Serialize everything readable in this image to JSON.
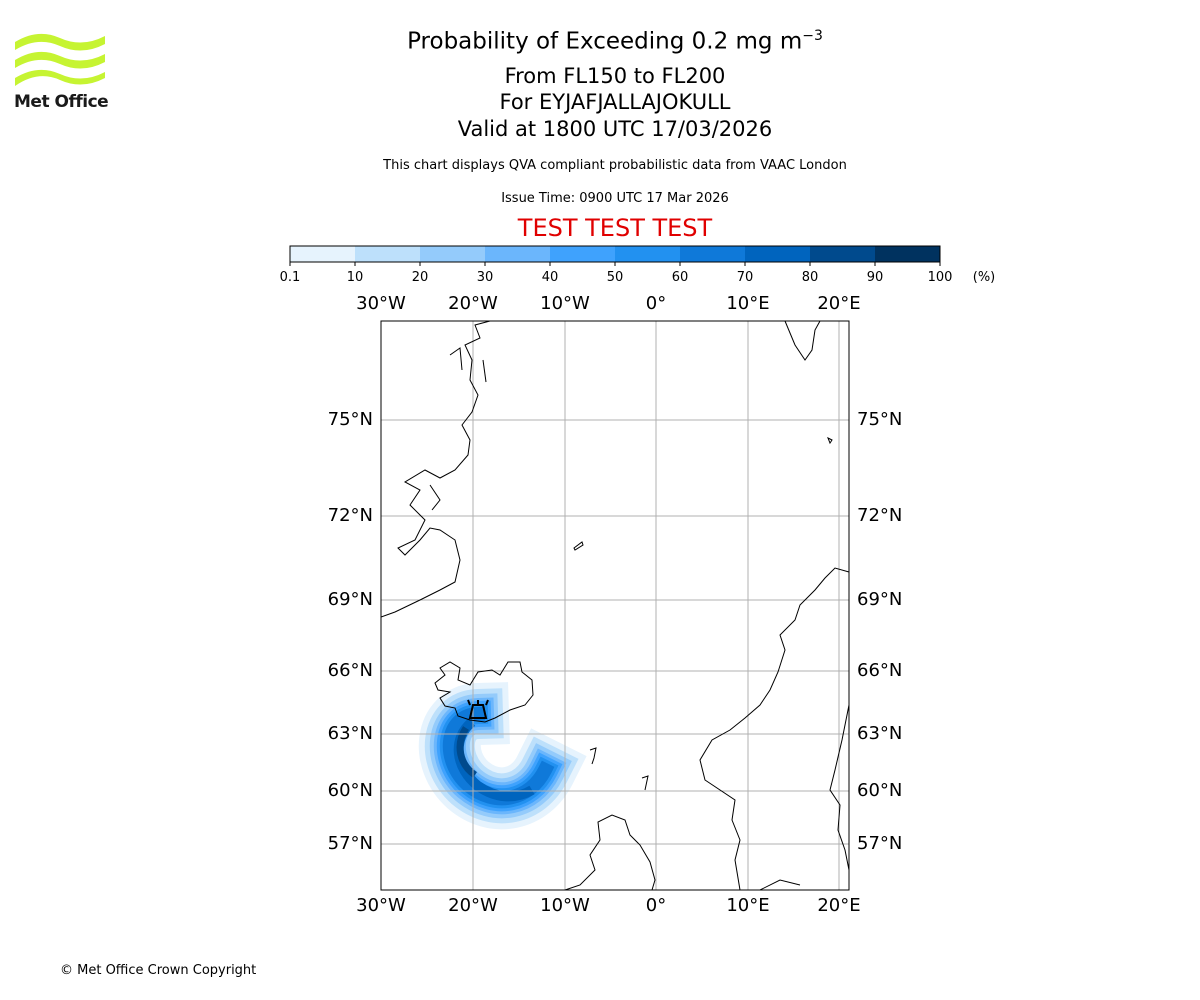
{
  "logo": {
    "text": "Met Office",
    "color": "#c6f432"
  },
  "header": {
    "title_main": "Probability of Exceeding 0.2 mg m",
    "title_exp": "−3",
    "levels": "From FL150 to FL200",
    "volcano": "For EYJAFJALLAJOKULL",
    "valid": "Valid at 1800 UTC 17/03/2026",
    "description": "This chart displays QVA compliant probabilistic data from VAAC London",
    "issue_time": "Issue Time: 0900 UTC 17 Mar 2026",
    "test_banner": "TEST TEST TEST"
  },
  "colorbar": {
    "ticks": [
      "0.1",
      "10",
      "20",
      "30",
      "40",
      "50",
      "60",
      "70",
      "80",
      "90",
      "100"
    ],
    "unit": "(%)",
    "colors": [
      "#e6f3fd",
      "#bde0fb",
      "#94cbfb",
      "#6bb6fc",
      "#3fa2fd",
      "#2291f0",
      "#0f79d9",
      "#0064be",
      "#004a8d",
      "#00325f"
    ]
  },
  "map": {
    "lon_labels": [
      "30°W",
      "20°W",
      "10°W",
      "0°",
      "10°E",
      "20°E"
    ],
    "lat_labels": [
      "75°N",
      "72°N",
      "69°N",
      "66°N",
      "63°N",
      "60°N",
      "57°N"
    ]
  },
  "footer": {
    "copyright": "© Met Office Crown Copyright"
  }
}
